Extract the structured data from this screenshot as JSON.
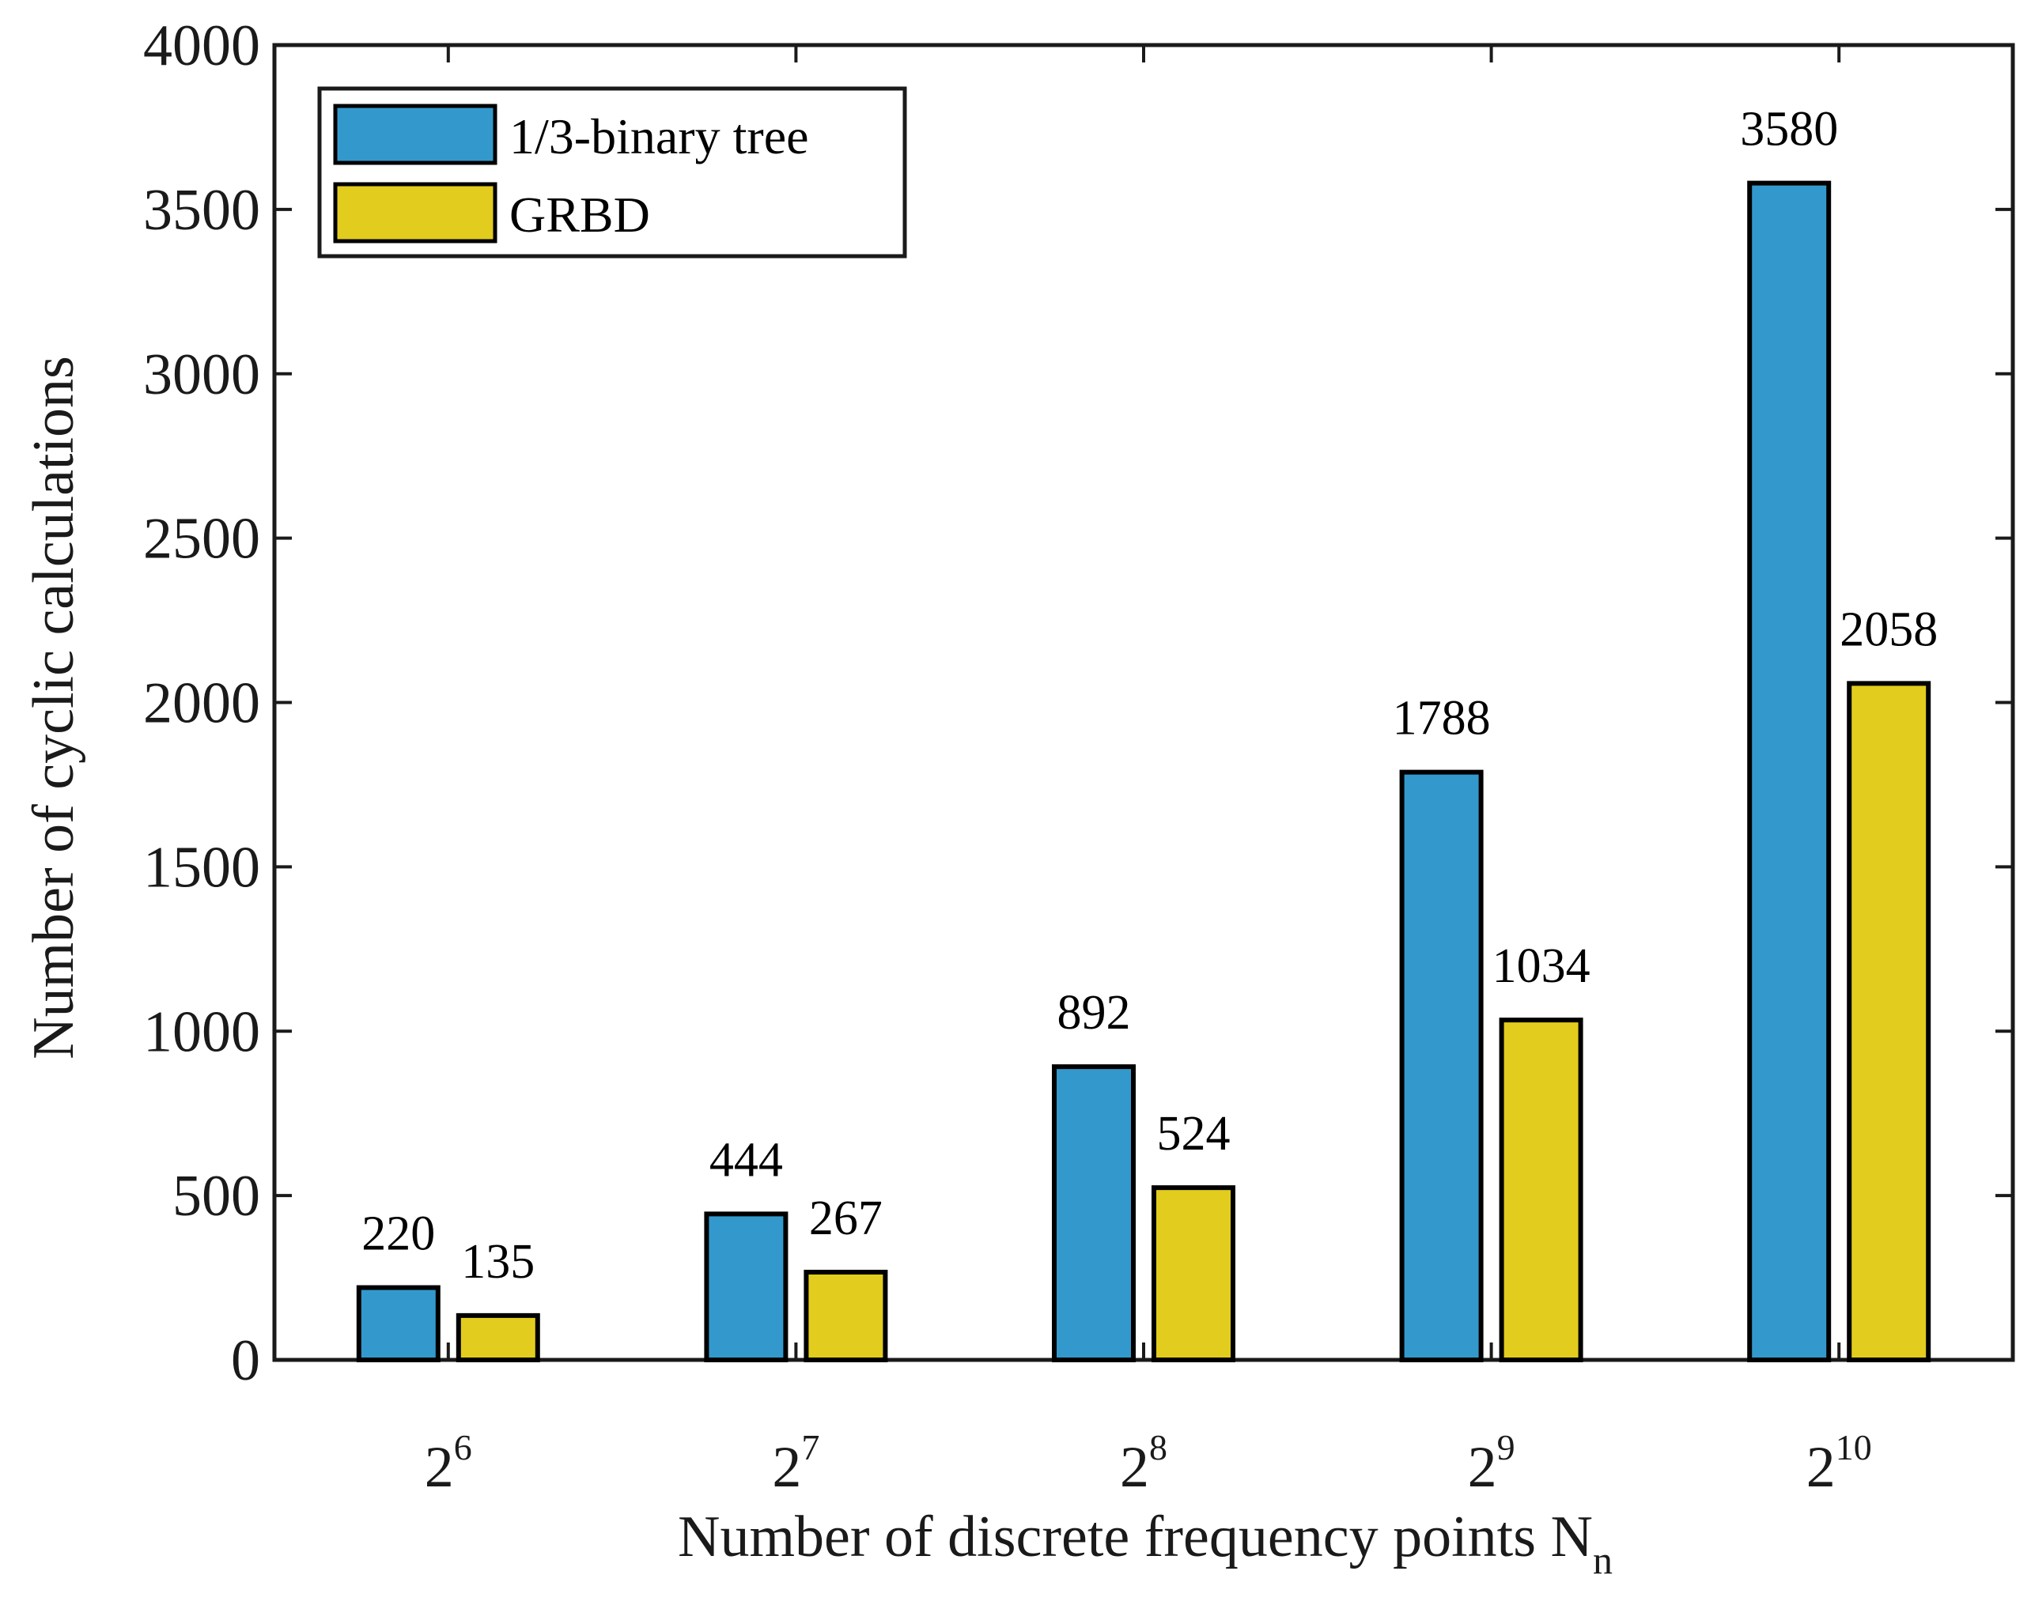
{
  "chart_data": {
    "type": "bar",
    "title": "",
    "xlabel": "Number of discrete frequency points N",
    "xlabel_subscript": "n",
    "ylabel": "Number of cyclic calculations",
    "ylim": [
      0,
      4000
    ],
    "yticks": [
      0,
      500,
      1000,
      1500,
      2000,
      2500,
      3000,
      3500,
      4000
    ],
    "categories": [
      {
        "base": "2",
        "exp": "6"
      },
      {
        "base": "2",
        "exp": "7"
      },
      {
        "base": "2",
        "exp": "8"
      },
      {
        "base": "2",
        "exp": "9"
      },
      {
        "base": "2",
        "exp": "10"
      }
    ],
    "series": [
      {
        "name": "1/3-binary tree",
        "color": "#3399cc",
        "values": [
          220,
          444,
          892,
          1788,
          3580
        ]
      },
      {
        "name": "GRBD",
        "color": "#e2cc1e",
        "values": [
          135,
          267,
          524,
          1034,
          2058
        ]
      }
    ],
    "legend_position": "top-left",
    "grid": false
  }
}
